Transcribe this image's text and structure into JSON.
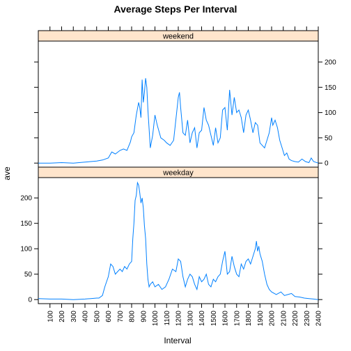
{
  "chart_data": {
    "type": "line",
    "title": "Average Steps Per Interval",
    "xlabel": "Interval",
    "ylabel": "ave",
    "xlim": [
      0,
      2400
    ],
    "ylim": [
      -8,
      240
    ],
    "x_ticks": [
      100,
      200,
      300,
      400,
      500,
      600,
      700,
      800,
      900,
      1000,
      1100,
      1200,
      1300,
      1400,
      1500,
      1600,
      1700,
      1800,
      1900,
      2000,
      2100,
      2200,
      2300,
      2400
    ],
    "y_ticks": [
      0,
      50,
      100,
      150,
      200
    ],
    "line_color": "#0080ff",
    "strip_color": "#ffe5cc",
    "panels": [
      {
        "name": "weekend",
        "x": [
          0,
          100,
          200,
          300,
          400,
          450,
          500,
          550,
          600,
          630,
          660,
          700,
          730,
          760,
          790,
          800,
          820,
          840,
          860,
          870,
          880,
          890,
          900,
          910,
          920,
          930,
          940,
          960,
          980,
          1000,
          1020,
          1050,
          1080,
          1100,
          1130,
          1160,
          1200,
          1210,
          1220,
          1240,
          1260,
          1280,
          1300,
          1320,
          1340,
          1360,
          1380,
          1400,
          1420,
          1440,
          1460,
          1480,
          1500,
          1520,
          1540,
          1560,
          1580,
          1600,
          1620,
          1640,
          1660,
          1680,
          1700,
          1720,
          1740,
          1760,
          1780,
          1800,
          1820,
          1840,
          1860,
          1880,
          1900,
          1920,
          1940,
          1960,
          1980,
          2000,
          2010,
          2030,
          2050,
          2070,
          2090,
          2110,
          2130,
          2150,
          2170,
          2200,
          2230,
          2260,
          2290,
          2320,
          2340,
          2360,
          2400
        ],
        "y": [
          0,
          0,
          1,
          0,
          2,
          3,
          4,
          6,
          10,
          22,
          18,
          25,
          28,
          25,
          42,
          52,
          60,
          95,
          120,
          110,
          90,
          165,
          120,
          140,
          168,
          150,
          105,
          30,
          55,
          95,
          75,
          50,
          45,
          40,
          35,
          45,
          130,
          140,
          110,
          60,
          55,
          85,
          40,
          60,
          70,
          30,
          60,
          65,
          110,
          85,
          75,
          55,
          35,
          70,
          40,
          50,
          105,
          110,
          65,
          145,
          95,
          130,
          100,
          105,
          90,
          60,
          95,
          105,
          85,
          60,
          80,
          75,
          40,
          35,
          30,
          45,
          60,
          90,
          75,
          85,
          70,
          45,
          30,
          15,
          20,
          8,
          5,
          3,
          2,
          8,
          3,
          1,
          10,
          3,
          0
        ]
      },
      {
        "name": "weekday",
        "x": [
          0,
          100,
          200,
          300,
          400,
          450,
          500,
          520,
          550,
          570,
          600,
          620,
          640,
          660,
          680,
          700,
          720,
          740,
          760,
          780,
          800,
          810,
          820,
          830,
          840,
          850,
          860,
          870,
          880,
          890,
          900,
          910,
          920,
          930,
          940,
          950,
          960,
          980,
          1000,
          1030,
          1060,
          1090,
          1120,
          1150,
          1180,
          1200,
          1220,
          1240,
          1260,
          1280,
          1300,
          1320,
          1340,
          1360,
          1380,
          1400,
          1420,
          1440,
          1460,
          1480,
          1500,
          1520,
          1540,
          1560,
          1580,
          1600,
          1620,
          1640,
          1660,
          1680,
          1700,
          1720,
          1740,
          1760,
          1780,
          1800,
          1820,
          1840,
          1860,
          1870,
          1880,
          1890,
          1900,
          1920,
          1940,
          1960,
          1980,
          2000,
          2040,
          2080,
          2110,
          2140,
          2170,
          2200,
          2240,
          2280,
          2320,
          2360,
          2400
        ],
        "y": [
          2,
          1,
          1,
          0,
          1,
          2,
          3,
          3,
          8,
          25,
          45,
          70,
          65,
          50,
          55,
          60,
          55,
          65,
          60,
          70,
          75,
          120,
          150,
          195,
          205,
          230,
          225,
          210,
          190,
          200,
          180,
          145,
          120,
          70,
          40,
          25,
          30,
          35,
          25,
          30,
          20,
          25,
          40,
          60,
          55,
          80,
          75,
          45,
          25,
          40,
          50,
          45,
          30,
          20,
          45,
          35,
          40,
          50,
          30,
          25,
          40,
          35,
          45,
          50,
          75,
          95,
          50,
          55,
          85,
          65,
          50,
          45,
          70,
          60,
          75,
          80,
          70,
          85,
          100,
          115,
          95,
          105,
          90,
          75,
          50,
          30,
          20,
          15,
          10,
          15,
          8,
          10,
          12,
          6,
          5,
          3,
          2,
          1,
          0
        ]
      }
    ]
  }
}
